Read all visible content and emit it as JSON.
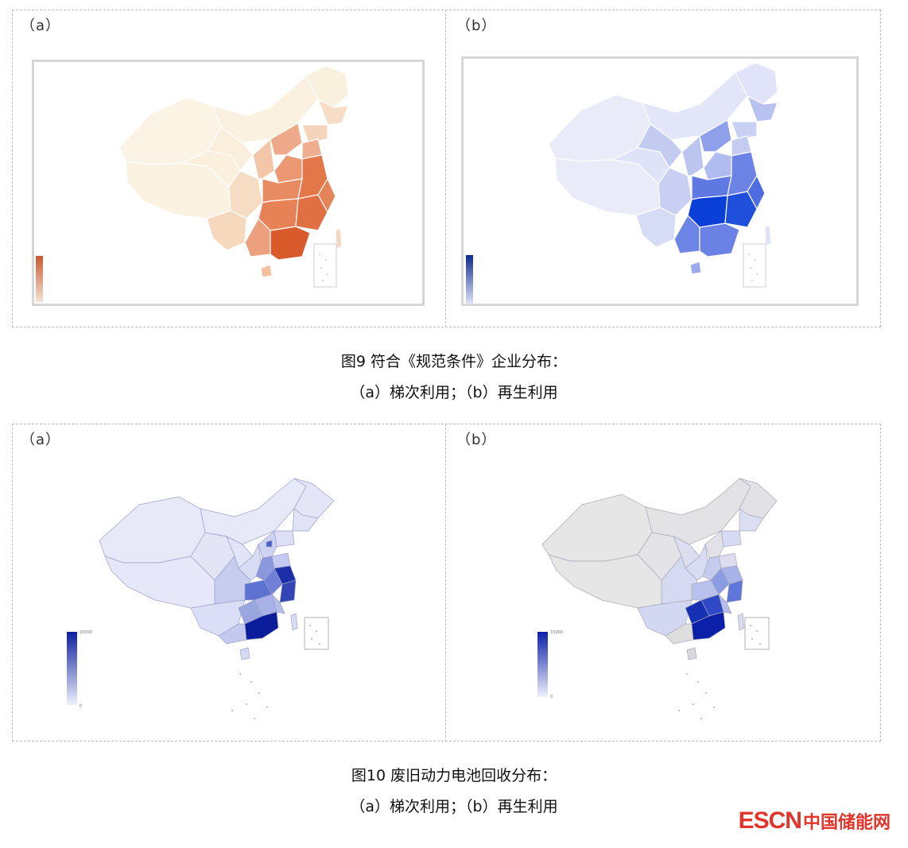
{
  "figure9": {
    "panel_a_label": "（a）",
    "panel_b_label": "（b）",
    "legend_a_max": "",
    "legend_b_max": "",
    "colors": {
      "a_low": "#fbf3e6",
      "a_high": "#d8592c",
      "b_low": "#eef0fb",
      "b_high": "#0a35d6"
    },
    "caption_line1": "图9 符合《规范条件》企业分布：",
    "caption_line2": "（a）梯次利用；（b）再生利用"
  },
  "figure10": {
    "panel_a_label": "（a）",
    "panel_b_label": "（b）",
    "legend_a_max": "20000",
    "legend_a_min": "0",
    "legend_b_max": "15000",
    "legend_b_min": "0",
    "colors": {
      "a_low": "#e8e9f8",
      "a_high": "#0b1f9e",
      "b_low": "#e6e6e6",
      "b_high": "#0b1fa8"
    },
    "caption_line1": "图10 废旧动力电池回收分布：",
    "caption_line2": "（a）梯次利用；（b）再生利用"
  },
  "logo": {
    "escn": "ESCN",
    "cn": "中国储能网"
  }
}
